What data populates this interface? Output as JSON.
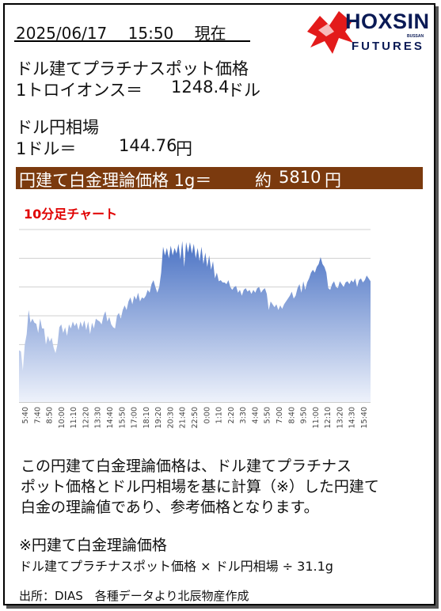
{
  "header": {
    "datetime": "2025/06/17　 15:50　 現在",
    "logo_main": "HOXSIN",
    "logo_small": "BUSSAN",
    "logo_sub": "FUTURES"
  },
  "platinum": {
    "label": "ドル建てプラチナスポット価格",
    "unit_label": "1トロイオンス＝",
    "value": "1248.4",
    "unit": "ドル"
  },
  "fx": {
    "label": "ドル円相場",
    "unit_label": "1ドル＝",
    "value": "144.76",
    "unit": "円"
  },
  "banner": {
    "label": "円建て白金理論価格 1g＝",
    "prefix": "約",
    "value": "5810",
    "unit": "円",
    "color": "#7b3a0e"
  },
  "chart_title": "10分足チャート",
  "chart_data": {
    "type": "area",
    "title": "10分足チャート",
    "ylim": [
      5600,
      5900
    ],
    "yticks": [
      5600,
      5650,
      5700,
      5750,
      5800,
      5850,
      5900
    ],
    "grid": true,
    "y_axis_side": "right",
    "x_tick_labels": [
      "5:40",
      "7:40",
      "8:50",
      "10:00",
      "11:10",
      "12:20",
      "13:30",
      "14:40",
      "15:50",
      "17:00",
      "18:10",
      "19:20",
      "20:30",
      "21:40",
      "22:50",
      "0:00",
      "1:10",
      "2:20",
      "3:30",
      "4:40",
      "5:50",
      "7:00",
      "8:40",
      "9:50",
      "11:00",
      "12:10",
      "13:20",
      "14:30",
      "15:40"
    ],
    "series": [
      {
        "color": "#4a72c4",
        "values": [
          5690,
          5688,
          5655,
          5700,
          5718,
          5760,
          5738,
          5745,
          5738,
          5736,
          5720,
          5745,
          5728,
          5728,
          5700,
          5715,
          5705,
          5712,
          5695,
          5685,
          5700,
          5730,
          5735,
          5720,
          5730,
          5715,
          5735,
          5728,
          5740,
          5732,
          5738,
          5725,
          5740,
          5730,
          5742,
          5725,
          5740,
          5718,
          5738,
          5728,
          5745,
          5742,
          5740,
          5735,
          5750,
          5758,
          5740,
          5748,
          5735,
          5730,
          5728,
          5750,
          5755,
          5745,
          5760,
          5768,
          5760,
          5775,
          5782,
          5770,
          5785,
          5778,
          5790,
          5775,
          5782,
          5780,
          5785,
          5795,
          5790,
          5805,
          5812,
          5800,
          5790,
          5800,
          5825,
          5870,
          5855,
          5868,
          5850,
          5872,
          5855,
          5868,
          5858,
          5875,
          5848,
          5880,
          5835,
          5878,
          5860,
          5878,
          5858,
          5875,
          5850,
          5868,
          5845,
          5870,
          5840,
          5860,
          5835,
          5855,
          5830,
          5845,
          5815,
          5825,
          5810,
          5812,
          5808,
          5808,
          5805,
          5812,
          5800,
          5795,
          5800,
          5802,
          5790,
          5795,
          5785,
          5795,
          5798,
          5792,
          5795,
          5788,
          5795,
          5790,
          5798,
          5800,
          5790,
          5795,
          5798,
          5788,
          5760,
          5775,
          5770,
          5765,
          5770,
          5760,
          5768,
          5762,
          5770,
          5775,
          5780,
          5785,
          5792,
          5780,
          5785,
          5798,
          5805,
          5790,
          5810,
          5795,
          5808,
          5815,
          5825,
          5830,
          5825,
          5835,
          5840,
          5852,
          5840,
          5835,
          5825,
          5798,
          5795,
          5805,
          5810,
          5800,
          5798,
          5810,
          5805,
          5800,
          5808,
          5810,
          5805,
          5812,
          5808,
          5815,
          5800,
          5812,
          5815,
          5808,
          5812,
          5820,
          5815,
          5810
        ]
      }
    ]
  },
  "description": {
    "line1": "この円建て白金理論価格は、ドル建てプラチナス",
    "line2": "ポット価格とドル円相場を基に計算（※）した円建て",
    "line3": "白金の理論値であり、参考価格となります。"
  },
  "formula": {
    "title": "※円建て白金理論価格",
    "text": "ドル建てプラチナスポット価格 × ドル円相場 ÷ 31.1g"
  },
  "source": "出所：DIAS　各種データより北辰物産作成"
}
